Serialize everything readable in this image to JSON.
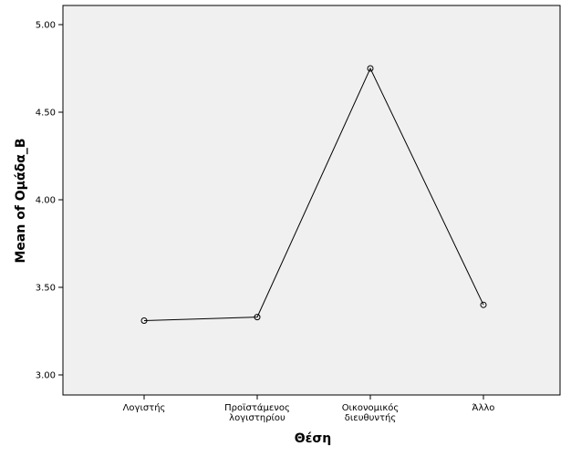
{
  "chart_data": {
    "type": "line",
    "title": "",
    "xlabel": "Θέση",
    "ylabel": "Mean of Ομάδα_Β",
    "categories": [
      [
        "Λογιστής"
      ],
      [
        "Προϊστάμενος",
        "λογιστηρίου"
      ],
      [
        "Οικονομικός",
        "διευθυντής"
      ],
      [
        "Άλλο"
      ]
    ],
    "series": [
      {
        "values": [
          3.31,
          3.33,
          4.75,
          3.4
        ]
      }
    ],
    "ylim": [
      3.0,
      5.0
    ],
    "yticks": [
      "3.00",
      "3.50",
      "4.00",
      "4.50",
      "5.00"
    ],
    "grid": false,
    "colors": {
      "plot_background": "#f0f0f0",
      "line": "#000000",
      "axis": "#000000"
    }
  }
}
